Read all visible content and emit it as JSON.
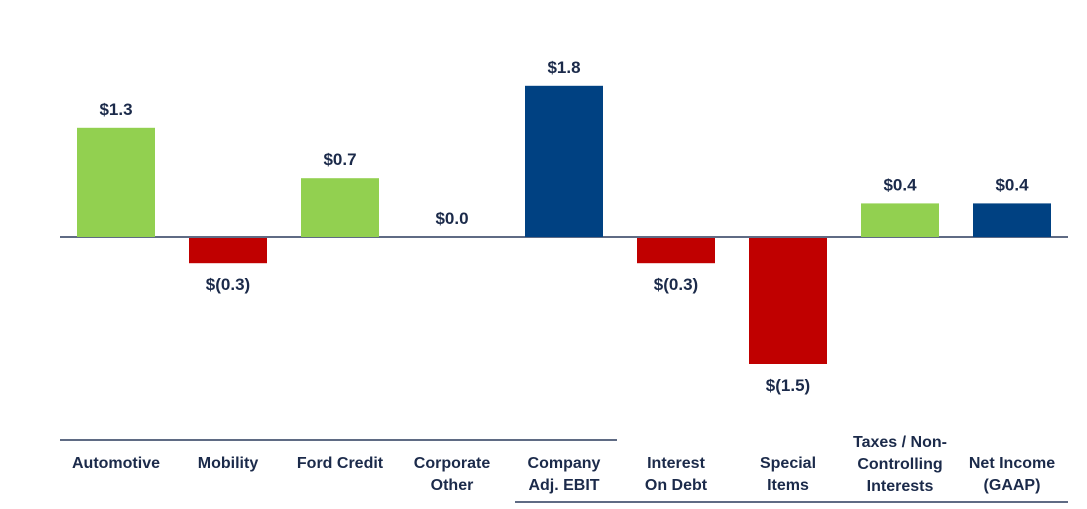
{
  "chart_data": {
    "type": "bar",
    "subtype": "waterfall",
    "categories": [
      [
        "Automotive"
      ],
      [
        "Mobility"
      ],
      [
        "Ford Credit"
      ],
      [
        "Corporate",
        "Other"
      ],
      [
        "Company",
        "Adj. EBIT"
      ],
      [
        "Interest",
        "On Debt"
      ],
      [
        "Special",
        "Items"
      ],
      [
        "Taxes / Non-",
        "Controlling",
        "Interests"
      ],
      [
        "Net Income",
        "(GAAP)"
      ]
    ],
    "values": [
      1.3,
      -0.3,
      0.7,
      0.0,
      1.8,
      -0.3,
      -1.5,
      0.4,
      0.4
    ],
    "value_labels": [
      "$1.3",
      "$(0.3)",
      "$0.7",
      "$0.0",
      "$1.8",
      "$(0.3)",
      "$(1.5)",
      "$0.4",
      "$0.4"
    ],
    "bar_roles": [
      "positive",
      "negative",
      "positive",
      "positive",
      "total",
      "negative",
      "negative",
      "positive",
      "total"
    ],
    "colors": {
      "positive": "#92d050",
      "negative": "#c00000",
      "total": "#004182",
      "axis": "#2a3a5c",
      "text": "#1b2a4a"
    },
    "ylim": [
      -2.2,
      2.2
    ],
    "title": "",
    "xlabel": "",
    "ylabel": "",
    "grid": false,
    "legend": "none"
  }
}
